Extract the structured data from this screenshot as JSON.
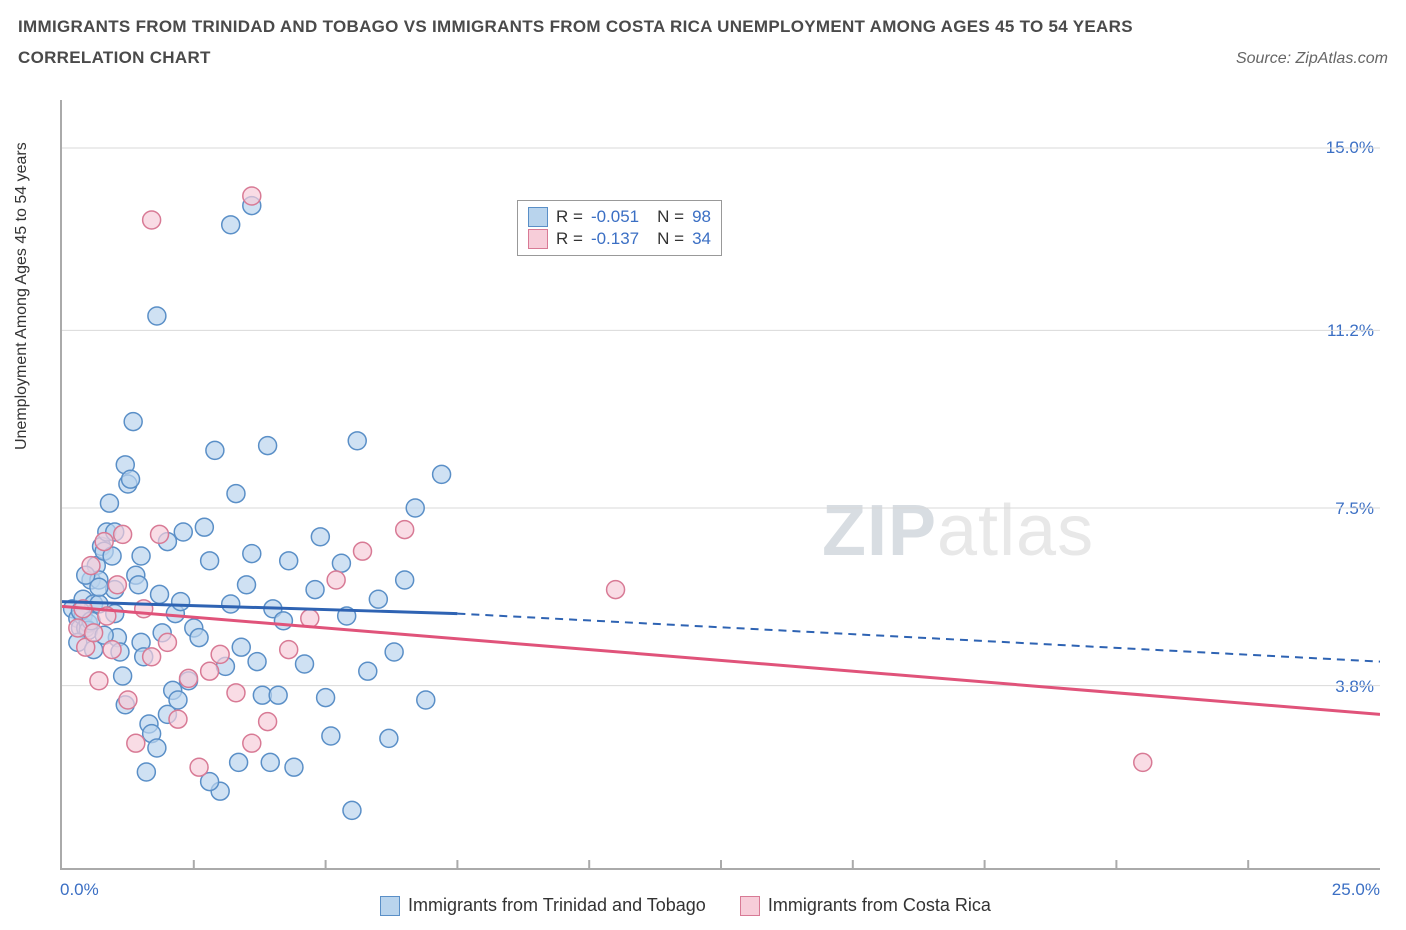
{
  "title_line1": "IMMIGRANTS FROM TRINIDAD AND TOBAGO VS IMMIGRANTS FROM COSTA RICA UNEMPLOYMENT AMONG AGES 45 TO 54 YEARS",
  "subtitle": "CORRELATION CHART",
  "source": "Source: ZipAtlas.com",
  "y_axis_label": "Unemployment Among Ages 45 to 54 years",
  "x_min_label": "0.0%",
  "x_max_label": "25.0%",
  "watermark_bold": "ZIP",
  "watermark_light": "atlas",
  "chart": {
    "type": "scatter",
    "xlim": [
      0,
      25
    ],
    "ylim": [
      0,
      16
    ],
    "y_ticks": [
      {
        "value": 15.0,
        "label": "15.0%"
      },
      {
        "value": 11.2,
        "label": "11.2%"
      },
      {
        "value": 7.5,
        "label": "7.5%"
      },
      {
        "value": 3.8,
        "label": "3.8%"
      }
    ],
    "x_ticks_at": [
      2.5,
      5,
      7.5,
      10,
      12.5,
      15,
      17.5,
      20,
      22.5
    ],
    "grid_color": "#d9d9d9",
    "background_color": "#ffffff",
    "marker_radius": 9,
    "marker_stroke_width": 1.5,
    "series": [
      {
        "name": "Immigrants from Trinidad and Tobago",
        "fill": "#b9d4edb0",
        "stroke": "#5a8fc7",
        "line_color": "#2e63b3",
        "line_dash_color": "#2e63b3",
        "r_value": "-0.051",
        "n_value": "98",
        "regression": {
          "x1": 0,
          "y1": 5.55,
          "x_solid_end": 7.5,
          "y_solid_end": 5.3,
          "x2": 25,
          "y2": 4.3
        },
        "points": [
          [
            0.2,
            5.4
          ],
          [
            0.3,
            5.2
          ],
          [
            0.35,
            5.0
          ],
          [
            0.4,
            5.25
          ],
          [
            0.4,
            5.6
          ],
          [
            0.45,
            5.0
          ],
          [
            0.5,
            5.1
          ],
          [
            0.5,
            4.95
          ],
          [
            0.55,
            6.0
          ],
          [
            0.6,
            5.5
          ],
          [
            0.65,
            6.3
          ],
          [
            0.7,
            5.5
          ],
          [
            0.7,
            6.0
          ],
          [
            0.75,
            6.7
          ],
          [
            0.8,
            6.6
          ],
          [
            0.85,
            7.0
          ],
          [
            0.9,
            7.6
          ],
          [
            0.95,
            6.5
          ],
          [
            1.0,
            5.8
          ],
          [
            1.0,
            7.0
          ],
          [
            1.05,
            4.8
          ],
          [
            1.1,
            4.5
          ],
          [
            1.15,
            4.0
          ],
          [
            1.2,
            3.4
          ],
          [
            1.2,
            8.4
          ],
          [
            1.25,
            8.0
          ],
          [
            1.3,
            8.1
          ],
          [
            1.35,
            9.3
          ],
          [
            1.4,
            6.1
          ],
          [
            1.45,
            5.9
          ],
          [
            1.5,
            4.7
          ],
          [
            1.55,
            4.4
          ],
          [
            1.6,
            2.0
          ],
          [
            1.65,
            3.0
          ],
          [
            1.7,
            2.8
          ],
          [
            1.8,
            11.5
          ],
          [
            1.85,
            5.7
          ],
          [
            1.9,
            4.9
          ],
          [
            2.0,
            6.8
          ],
          [
            2.1,
            3.7
          ],
          [
            2.15,
            5.3
          ],
          [
            2.2,
            3.5
          ],
          [
            2.25,
            5.55
          ],
          [
            2.3,
            7.0
          ],
          [
            2.4,
            3.9
          ],
          [
            2.5,
            5.0
          ],
          [
            2.6,
            4.8
          ],
          [
            2.7,
            7.1
          ],
          [
            2.8,
            6.4
          ],
          [
            2.9,
            8.7
          ],
          [
            3.0,
            1.6
          ],
          [
            3.1,
            4.2
          ],
          [
            3.2,
            5.5
          ],
          [
            3.2,
            13.4
          ],
          [
            3.3,
            7.8
          ],
          [
            3.35,
            2.2
          ],
          [
            3.4,
            4.6
          ],
          [
            3.5,
            5.9
          ],
          [
            3.6,
            6.55
          ],
          [
            3.7,
            4.3
          ],
          [
            3.8,
            3.6
          ],
          [
            3.9,
            8.8
          ],
          [
            3.95,
            2.2
          ],
          [
            4.0,
            5.4
          ],
          [
            4.1,
            3.6
          ],
          [
            4.2,
            5.15
          ],
          [
            4.3,
            6.4
          ],
          [
            4.4,
            2.1
          ],
          [
            4.6,
            4.25
          ],
          [
            4.8,
            5.8
          ],
          [
            4.9,
            6.9
          ],
          [
            5.0,
            3.55
          ],
          [
            5.1,
            2.75
          ],
          [
            5.3,
            6.35
          ],
          [
            5.4,
            5.25
          ],
          [
            5.6,
            8.9
          ],
          [
            5.8,
            4.1
          ],
          [
            6.0,
            5.6
          ],
          [
            6.2,
            2.7
          ],
          [
            6.3,
            4.5
          ],
          [
            6.5,
            6.0
          ],
          [
            6.7,
            7.5
          ],
          [
            6.9,
            3.5
          ],
          [
            5.5,
            1.2
          ],
          [
            7.2,
            8.2
          ],
          [
            0.3,
            4.7
          ],
          [
            0.35,
            5.35
          ],
          [
            0.45,
            6.1
          ],
          [
            0.55,
            5.15
          ],
          [
            0.6,
            4.55
          ],
          [
            0.7,
            5.85
          ],
          [
            0.8,
            4.85
          ],
          [
            1.0,
            5.3
          ],
          [
            1.5,
            6.5
          ],
          [
            2.0,
            3.2
          ],
          [
            2.8,
            1.8
          ],
          [
            3.6,
            13.8
          ],
          [
            1.8,
            2.5
          ]
        ]
      },
      {
        "name": "Immigrants from Costa Rica",
        "fill": "#f7cdd9b0",
        "stroke": "#d87a95",
        "line_color": "#e0537a",
        "r_value": "-0.137",
        "n_value": "34",
        "regression": {
          "x1": 0,
          "y1": 5.45,
          "x_solid_end": 25,
          "y_solid_end": 3.2,
          "x2": 25,
          "y2": 3.2
        },
        "points": [
          [
            0.3,
            5.0
          ],
          [
            0.4,
            5.4
          ],
          [
            0.45,
            4.6
          ],
          [
            0.55,
            6.3
          ],
          [
            0.6,
            4.9
          ],
          [
            0.7,
            3.9
          ],
          [
            0.8,
            6.8
          ],
          [
            0.85,
            5.25
          ],
          [
            0.95,
            4.55
          ],
          [
            1.05,
            5.9
          ],
          [
            1.15,
            6.95
          ],
          [
            1.25,
            3.5
          ],
          [
            1.4,
            2.6
          ],
          [
            1.55,
            5.4
          ],
          [
            1.7,
            4.4
          ],
          [
            1.85,
            6.95
          ],
          [
            1.7,
            13.5
          ],
          [
            2.0,
            4.7
          ],
          [
            2.2,
            3.1
          ],
          [
            2.4,
            3.95
          ],
          [
            2.6,
            2.1
          ],
          [
            2.8,
            4.1
          ],
          [
            3.0,
            4.45
          ],
          [
            3.3,
            3.65
          ],
          [
            3.6,
            2.6
          ],
          [
            3.9,
            3.05
          ],
          [
            4.3,
            4.55
          ],
          [
            4.7,
            5.2
          ],
          [
            5.2,
            6.0
          ],
          [
            5.7,
            6.6
          ],
          [
            6.5,
            7.05
          ],
          [
            10.5,
            5.8
          ],
          [
            3.6,
            14.0
          ],
          [
            20.5,
            2.2
          ]
        ]
      }
    ]
  },
  "bottom_legend": [
    {
      "label": "Immigrants from Trinidad and Tobago",
      "swatch": "blue"
    },
    {
      "label": "Immigrants from Costa Rica",
      "swatch": "pink"
    }
  ]
}
